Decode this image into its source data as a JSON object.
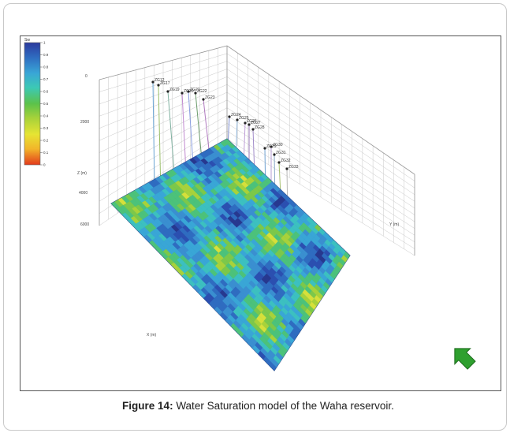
{
  "caption": {
    "prefix": "Figure 14:",
    "text": " Water Saturation model of the Waha reservoir."
  },
  "legend": {
    "unit": "Sw",
    "ticks": [
      "1",
      "0.9",
      "0.8",
      "0.7",
      "0.6",
      "0.5",
      "0.4",
      "0.3",
      "0.2",
      "0.1",
      "0"
    ],
    "colors": [
      "#2b3a9e",
      "#2f6cc0",
      "#39a6d6",
      "#3cc9b4",
      "#5cc24a",
      "#a8d23a",
      "#e6e433",
      "#f2b52a",
      "#ef6a22",
      "#e23a1c"
    ]
  },
  "axis_labels": {
    "z_top": "0",
    "z_mid1": "2000",
    "z_mid2": "4000",
    "z_mid3": "6000",
    "z_unit": "Z (m)",
    "x_unit": "X (m)",
    "y_unit": "Y (m)"
  },
  "wells": [
    "ZG12",
    "ZG17",
    "ZG19",
    "ZG20",
    "ZG21",
    "ZG22",
    "ZG23",
    "ZG24",
    "ZG25",
    "ZG26",
    "ZG27",
    "ZG28",
    "ZG29",
    "ZG30",
    "ZG31",
    "ZG32",
    "ZG33"
  ],
  "colors": {
    "frame": "#555555",
    "grid": "#c8c8c8",
    "arrow": "#2fa02f"
  }
}
